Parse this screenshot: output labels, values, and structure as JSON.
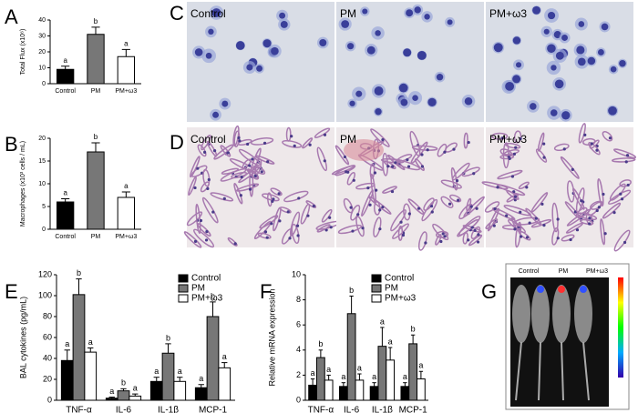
{
  "chart_data": [
    {
      "type": "bar",
      "panel": "A",
      "ylabel": "Total Flux (x10⁶)",
      "categories": [
        "Control",
        "PM",
        "PM+ω3"
      ],
      "values": [
        9,
        31,
        17
      ],
      "errors": [
        2,
        4.5,
        4.5
      ],
      "annotations": [
        "a",
        "b",
        "a"
      ],
      "colors": [
        "#000000",
        "#777777",
        "#ffffff"
      ],
      "ylim": [
        0,
        40
      ],
      "yticks": [
        0,
        10,
        20,
        30,
        40
      ]
    },
    {
      "type": "bar",
      "panel": "B",
      "ylabel": "Macrophages (x10³ cells / mL)",
      "categories": [
        "Control",
        "PM",
        "PM+ω3"
      ],
      "values": [
        6,
        17,
        7
      ],
      "errors": [
        0.7,
        2,
        1.2
      ],
      "annotations": [
        "a",
        "b",
        "a"
      ],
      "colors": [
        "#000000",
        "#777777",
        "#ffffff"
      ],
      "ylim": [
        0,
        20
      ],
      "yticks": [
        0,
        5,
        10,
        15,
        20
      ]
    },
    {
      "type": "bar",
      "panel": "E",
      "ylabel": "BAL cytokines (pg/mL)",
      "categories": [
        "TNF-α",
        "IL-6",
        "IL-1β",
        "MCP-1"
      ],
      "series": [
        {
          "name": "Control",
          "color": "#000000",
          "values": [
            38,
            2,
            18,
            12
          ],
          "errors": [
            10,
            1,
            4,
            3
          ],
          "annotations": [
            "a",
            "a",
            "a",
            "a"
          ]
        },
        {
          "name": "PM",
          "color": "#777777",
          "values": [
            101,
            9,
            45,
            80
          ],
          "errors": [
            15,
            2,
            9,
            14
          ],
          "annotations": [
            "b",
            "b",
            "b",
            "b"
          ]
        },
        {
          "name": "PM+ω3",
          "color": "#ffffff",
          "values": [
            46,
            4,
            18,
            31
          ],
          "errors": [
            4,
            2,
            4,
            5
          ],
          "annotations": [
            "a",
            "a",
            "a",
            "a"
          ]
        }
      ],
      "legend": "top-right",
      "ylim": [
        0,
        120
      ],
      "yticks": [
        0,
        20,
        40,
        60,
        80,
        100,
        120
      ]
    },
    {
      "type": "bar",
      "panel": "F",
      "ylabel": "Relative mRNA expression",
      "categories": [
        "TNF-α",
        "IL-6",
        "IL-1β",
        "MCP-1"
      ],
      "series": [
        {
          "name": "Control",
          "color": "#000000",
          "values": [
            1.2,
            1.1,
            1.1,
            1.1
          ],
          "errors": [
            0.5,
            0.3,
            0.3,
            0.3
          ],
          "annotations": [
            "a",
            "a",
            "a",
            "a"
          ]
        },
        {
          "name": "PM",
          "color": "#777777",
          "values": [
            3.4,
            6.9,
            4.3,
            4.5
          ],
          "errors": [
            0.6,
            1.4,
            1.5,
            0.7
          ],
          "annotations": [
            "b",
            "b",
            "a",
            "b"
          ]
        },
        {
          "name": "PM+ω3",
          "color": "#ffffff",
          "values": [
            1.6,
            1.6,
            3.2,
            1.7
          ],
          "errors": [
            0.4,
            0.5,
            1.0,
            0.6
          ],
          "annotations": [
            "a",
            "a",
            "a",
            "a"
          ]
        }
      ],
      "legend": "top-right",
      "ylim": [
        0,
        10
      ],
      "yticks": [
        0,
        2,
        4,
        6,
        8,
        10
      ]
    }
  ],
  "images": [
    {
      "panel": "C",
      "labels": [
        "Control",
        "PM",
        "PM+ω3"
      ]
    },
    {
      "panel": "D",
      "labels": [
        "Control",
        "PM",
        "PM+ω3"
      ]
    },
    {
      "panel": "G",
      "labels": [
        "Control",
        "PM",
        "PM+ω3"
      ]
    }
  ]
}
